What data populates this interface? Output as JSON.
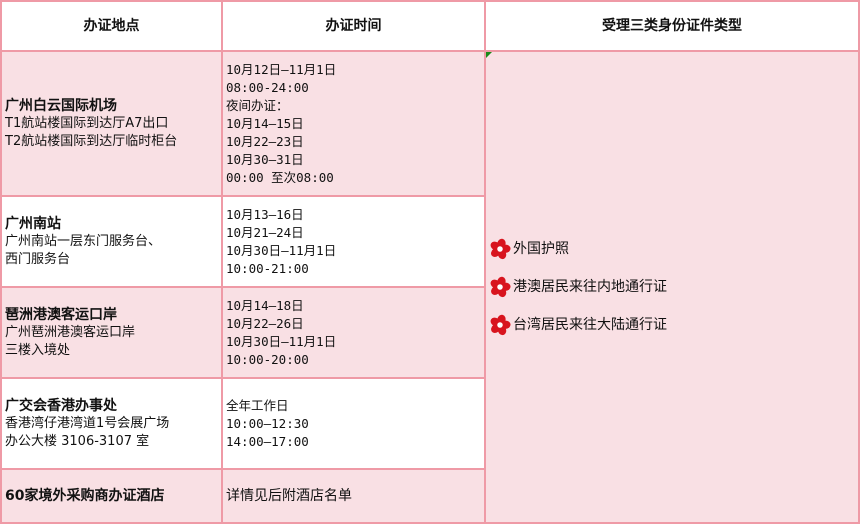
{
  "headers": [
    "办证地点",
    "办证时间",
    "受理三类身份证件类型"
  ],
  "rows": [
    {
      "name": "广州白云国际机场",
      "details": [
        "T1航站楼国际到达厅A7出口",
        "T2航站楼国际到达厅临时柜台"
      ],
      "times": [
        "10月12日—11月1日",
        "08:00-24:00",
        "夜间办证：",
        "10月14—15日",
        "10月22—23日",
        "10月30—31日",
        "00:00 至次08:00"
      ]
    },
    {
      "name": "广州南站",
      "details": [
        "广州南站一层东门服务台、",
        "西门服务台"
      ],
      "times": [
        "10月13—16日",
        "10月21—24日",
        "10月30日—11月1日",
        "10:00-21:00"
      ]
    },
    {
      "name": "琶洲港澳客运口岸",
      "details": [
        "广州琶洲港澳客运口岸",
        "三楼入境处"
      ],
      "times": [
        "10月14—18日",
        "10月22—26日",
        "10月30日—11月1日",
        "10:00-20:00"
      ]
    },
    {
      "name": "广交会香港办事处",
      "details": [
        "香港湾仔港湾道1号会展广场",
        "办公大楼 3106-3107 室"
      ],
      "times": [
        "全年工作日",
        "10:00—12:30",
        "14:00—17:00"
      ]
    },
    {
      "name": "60家境外采购商办证酒店",
      "details": [],
      "times": [
        "详情见后附酒店名单"
      ]
    }
  ],
  "document_types": [
    {
      "icon": "canton-fair-flower-icon",
      "label": "外国护照"
    },
    {
      "icon": "canton-fair-flower-icon",
      "label": "港澳居民来往内地通行证"
    },
    {
      "icon": "canton-fair-flower-icon",
      "label": "台湾居民来往大陆通行证"
    }
  ],
  "colors": {
    "border": "#ef9aa6",
    "row_pink": "#f9e0e4",
    "icon_red": "#d8141e"
  }
}
